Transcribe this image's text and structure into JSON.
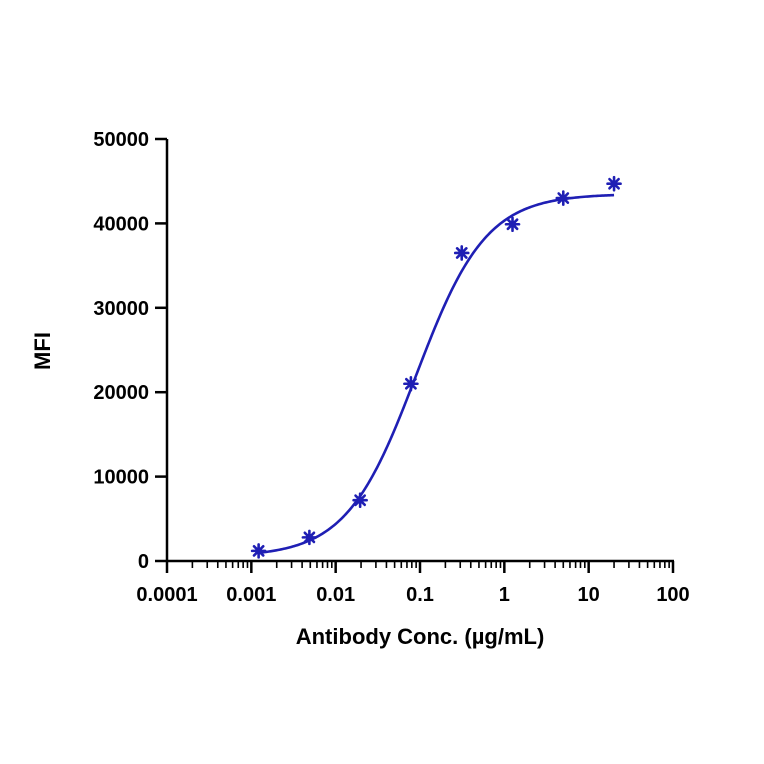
{
  "chart_data": {
    "type": "scatter",
    "title": "",
    "xlabel": "Antibody Conc. (µg/mL)",
    "ylabel": "MFI",
    "x_scale": "log",
    "xlim": [
      0.0001,
      100
    ],
    "ylim": [
      0,
      50000
    ],
    "x_ticks": [
      0.0001,
      0.001,
      0.01,
      0.1,
      1,
      10,
      100
    ],
    "x_tick_labels": [
      "0.0001",
      "0.001",
      "0.01",
      "0.1",
      "1",
      "10",
      "100"
    ],
    "y_ticks": [
      0,
      10000,
      20000,
      30000,
      40000,
      50000
    ],
    "y_tick_labels": [
      "0",
      "10000",
      "20000",
      "30000",
      "40000",
      "50000"
    ],
    "grid": false,
    "legend": "none",
    "color": "#1f1fb4",
    "marker": "asterisk",
    "series": [
      {
        "x": [
          0.00122,
          0.00488,
          0.0195,
          0.078,
          0.3125,
          1.25,
          5,
          20
        ],
        "y": [
          1200,
          2800,
          7200,
          21000,
          36500,
          39900,
          43000,
          44700
        ]
      }
    ],
    "fit_curve": {
      "type": "4PL",
      "bottom": 500,
      "top": 43500,
      "ec50": 0.09,
      "hill": 1.05,
      "x_range": [
        0.00122,
        20
      ]
    }
  }
}
